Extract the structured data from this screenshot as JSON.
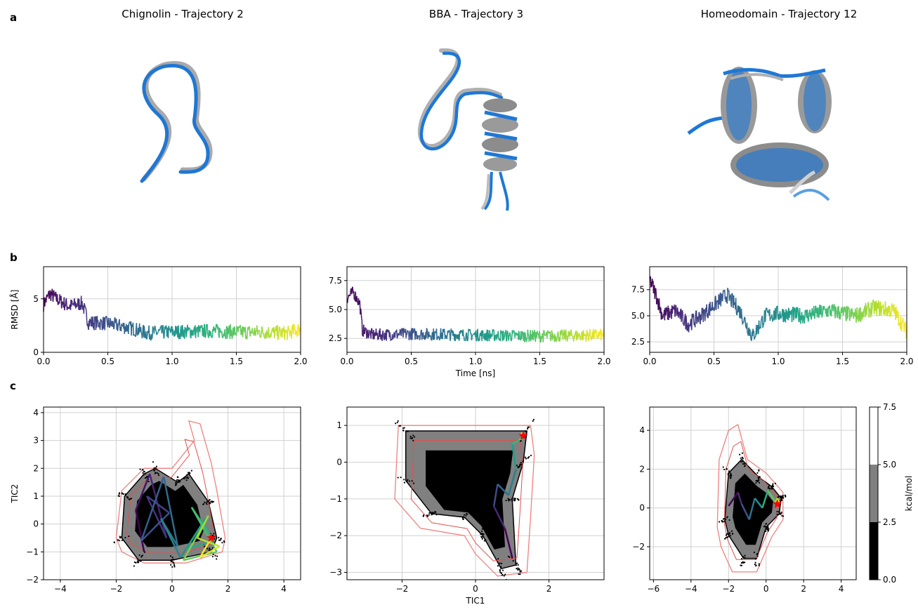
{
  "panel_letters": [
    "a",
    "b",
    "c"
  ],
  "structures": [
    {
      "title": "Chignolin - Trajectory 2"
    },
    {
      "title": "BBA - Trajectory 3"
    },
    {
      "title": "Homeodomain - Trajectory 12"
    }
  ],
  "colors": {
    "reference_structure": "#1f77d4",
    "generated_structure": "#a9a9a9",
    "free_energy_contour": "#f08080",
    "minimum_marker": "#ff0000",
    "grid": "#d9d9d9"
  },
  "chart_data": [
    {
      "type": "line",
      "panel": "b",
      "series_desc": "Chignolin RMSD",
      "xlabel": "",
      "ylabel": "RMSD [Å]",
      "xlim": [
        0,
        2.0
      ],
      "ylim": [
        0,
        8
      ],
      "xticks": [
        "0.0",
        "0.5",
        "1.0",
        "1.5",
        "2.0"
      ],
      "yticks": [
        "0",
        "5"
      ],
      "yticks_values": [
        0,
        5
      ],
      "grid": true,
      "colormap": "viridis",
      "keypoints": [
        [
          0,
          4.5
        ],
        [
          0.05,
          5.5
        ],
        [
          0.1,
          5.0
        ],
        [
          0.2,
          4.3
        ],
        [
          0.3,
          4.6
        ],
        [
          0.35,
          2.8
        ],
        [
          0.5,
          2.7
        ],
        [
          0.7,
          2.2
        ],
        [
          0.8,
          1.8
        ],
        [
          1.0,
          1.9
        ],
        [
          1.3,
          2.0
        ],
        [
          1.5,
          1.9
        ],
        [
          1.7,
          1.9
        ],
        [
          1.9,
          1.8
        ],
        [
          2.0,
          2.2
        ]
      ],
      "noise": 0.7
    },
    {
      "type": "line",
      "panel": "b",
      "series_desc": "BBA RMSD",
      "xlabel": "Time [ns]",
      "ylabel": "",
      "xlim": [
        0,
        2.0
      ],
      "ylim": [
        1.3,
        8.7
      ],
      "xticks": [
        "0.0",
        "0.5",
        "1.0",
        "1.5",
        "2.0"
      ],
      "yticks": [
        "2.5",
        "5.0",
        "7.5"
      ],
      "yticks_values": [
        2.5,
        5.0,
        7.5
      ],
      "grid": true,
      "colormap": "viridis",
      "keypoints": [
        [
          0,
          6.0
        ],
        [
          0.05,
          6.5
        ],
        [
          0.1,
          5.5
        ],
        [
          0.12,
          3.2
        ],
        [
          0.2,
          2.8
        ],
        [
          0.5,
          2.9
        ],
        [
          1.0,
          2.8
        ],
        [
          1.5,
          2.7
        ],
        [
          2.0,
          2.8
        ]
      ],
      "noise": 0.55
    },
    {
      "type": "line",
      "panel": "b",
      "series_desc": "Homeodomain RMSD",
      "xlabel": "",
      "ylabel": "",
      "xlim": [
        0,
        2.0
      ],
      "ylim": [
        1.5,
        9.7
      ],
      "xticks": [
        "0.0",
        "0.5",
        "1.0",
        "1.5",
        "2.0"
      ],
      "yticks": [
        "2.5",
        "5.0",
        "7.5"
      ],
      "yticks_values": [
        2.5,
        5.0,
        7.5
      ],
      "grid": true,
      "colormap": "viridis",
      "keypoints": [
        [
          0,
          8.5
        ],
        [
          0.05,
          7.0
        ],
        [
          0.1,
          5.0
        ],
        [
          0.2,
          5.5
        ],
        [
          0.3,
          4.2
        ],
        [
          0.4,
          5.0
        ],
        [
          0.5,
          6.0
        ],
        [
          0.6,
          7.0
        ],
        [
          0.7,
          5.5
        ],
        [
          0.8,
          3.0
        ],
        [
          0.9,
          5.0
        ],
        [
          1.0,
          5.2
        ],
        [
          1.2,
          5.0
        ],
        [
          1.4,
          5.5
        ],
        [
          1.6,
          5.0
        ],
        [
          1.75,
          5.8
        ],
        [
          1.9,
          5.5
        ],
        [
          2.0,
          3.5
        ]
      ],
      "noise": 0.8
    },
    {
      "type": "heatmap",
      "panel": "c",
      "series_desc": "Chignolin free energy",
      "xlabel": "",
      "ylabel": "TIC2",
      "xlim": [
        -4.6,
        4.6
      ],
      "ylim": [
        -2,
        4.2
      ],
      "xticks": [
        "−4",
        "−2",
        "0",
        "2",
        "4"
      ],
      "xticks_values": [
        -4,
        -2,
        0,
        2,
        4
      ],
      "yticks": [
        "−2",
        "−1",
        "0",
        "1",
        "2",
        "3",
        "4"
      ],
      "yticks_values": [
        -2,
        -1,
        0,
        1,
        2,
        3,
        4
      ],
      "grid": true,
      "reference_outline": [
        [
          -2.0,
          -0.5
        ],
        [
          -1.8,
          1.2
        ],
        [
          -1.0,
          2.0
        ],
        [
          0.0,
          2.0
        ],
        [
          0.8,
          3.0
        ],
        [
          0.6,
          3.7
        ],
        [
          1.0,
          3.6
        ],
        [
          1.4,
          2.2
        ],
        [
          1.6,
          1.2
        ],
        [
          1.9,
          -0.5
        ],
        [
          1.8,
          -1.0
        ],
        [
          0.5,
          -1.4
        ],
        [
          -1.0,
          -1.4
        ],
        [
          -1.8,
          -1.0
        ]
      ],
      "density_outline": [
        [
          -1.8,
          -0.5
        ],
        [
          -1.7,
          1.0
        ],
        [
          -1.0,
          1.8
        ],
        [
          -0.6,
          2.0
        ],
        [
          0.2,
          1.5
        ],
        [
          0.6,
          1.8
        ],
        [
          1.3,
          0.8
        ],
        [
          1.6,
          -0.5
        ],
        [
          1.4,
          -1.0
        ],
        [
          0.0,
          -1.3
        ],
        [
          -1.2,
          -1.3
        ]
      ],
      "trajectory": [
        [
          -1.0,
          -1.0
        ],
        [
          -1.3,
          0.5
        ],
        [
          -0.8,
          1.8
        ],
        [
          -0.2,
          -0.5
        ],
        [
          -0.9,
          1.0
        ],
        [
          -0.1,
          0.4
        ],
        [
          -1.1,
          -0.6
        ],
        [
          -0.3,
          1.7
        ],
        [
          0.2,
          -0.8
        ],
        [
          -0.4,
          0.2
        ],
        [
          0.3,
          -1.2
        ],
        [
          1.2,
          0.2
        ],
        [
          0.5,
          -0.9
        ],
        [
          1.5,
          -0.6
        ],
        [
          0.7,
          0.6
        ],
        [
          1.6,
          -1.0
        ],
        [
          0.4,
          -1.3
        ],
        [
          1.3,
          0.3
        ],
        [
          0.9,
          -0.5
        ],
        [
          1.7,
          -0.8
        ],
        [
          1.0,
          -1.2
        ],
        [
          1.4,
          -0.5
        ]
      ],
      "minimum": [
        1.4,
        -0.5
      ]
    },
    {
      "type": "heatmap",
      "panel": "c",
      "series_desc": "BBA free energy",
      "xlabel": "TIC1",
      "ylabel": "",
      "xlim": [
        -3.5,
        3.5
      ],
      "ylim": [
        -3.2,
        1.5
      ],
      "xticks": [
        "−2",
        "0",
        "2"
      ],
      "xticks_values": [
        -2,
        0,
        2
      ],
      "yticks": [
        "−3",
        "−2",
        "−1",
        "0",
        "1"
      ],
      "yticks_values": [
        -3,
        -2,
        -1,
        0,
        1
      ],
      "grid": true,
      "reference_outline": [
        [
          -2.1,
          1.0
        ],
        [
          1.5,
          1.0
        ],
        [
          1.6,
          0.2
        ],
        [
          1.5,
          -1.5
        ],
        [
          1.4,
          -3.0
        ],
        [
          0.6,
          -3.1
        ],
        [
          0.0,
          -2.5
        ],
        [
          -0.3,
          -2.0
        ],
        [
          -1.5,
          -1.8
        ],
        [
          -2.2,
          -1.0
        ]
      ],
      "density_outline": [
        [
          -1.9,
          0.85
        ],
        [
          1.4,
          0.85
        ],
        [
          1.3,
          0.0
        ],
        [
          1.0,
          -1.0
        ],
        [
          1.1,
          -2.8
        ],
        [
          0.7,
          -2.9
        ],
        [
          0.2,
          -2.0
        ],
        [
          -0.3,
          -1.5
        ],
        [
          -1.2,
          -1.4
        ],
        [
          -1.9,
          -0.5
        ]
      ],
      "trajectory": [
        [
          1.0,
          -2.6
        ],
        [
          0.8,
          -1.8
        ],
        [
          0.5,
          -1.2
        ],
        [
          0.6,
          -0.6
        ],
        [
          0.9,
          -0.9
        ],
        [
          1.1,
          -0.2
        ],
        [
          1.0,
          0.5
        ],
        [
          1.2,
          0.6
        ],
        [
          1.3,
          0.75
        ],
        [
          1.25,
          0.8
        ],
        [
          1.3,
          0.7
        ]
      ],
      "minimum": [
        1.3,
        0.72
      ]
    },
    {
      "type": "heatmap",
      "panel": "c",
      "series_desc": "Homeodomain free energy",
      "xlabel": "",
      "ylabel": "",
      "xlim": [
        -6.2,
        4.8
      ],
      "ylim": [
        -3.7,
        5.2
      ],
      "xticks": [
        "−6",
        "−4",
        "−2",
        "0",
        "2",
        "4"
      ],
      "xticks_values": [
        -6,
        -4,
        -2,
        0,
        2,
        4
      ],
      "yticks": [
        "−2",
        "0",
        "2",
        "4"
      ],
      "yticks_values": [
        -2,
        0,
        2,
        4
      ],
      "grid": true,
      "reference_outline": [
        [
          -2.6,
          -1.0
        ],
        [
          -2.5,
          2.5
        ],
        [
          -2.0,
          4.0
        ],
        [
          -1.5,
          4.3
        ],
        [
          -1.0,
          2.5
        ],
        [
          0.0,
          1.8
        ],
        [
          0.9,
          0.8
        ],
        [
          0.9,
          -0.6
        ],
        [
          0.3,
          -1.5
        ],
        [
          -0.5,
          -3.3
        ],
        [
          -1.8,
          -3.3
        ],
        [
          -2.4,
          -2.0
        ]
      ],
      "density_outline": [
        [
          -2.2,
          -0.6
        ],
        [
          -2.0,
          1.8
        ],
        [
          -1.3,
          2.5
        ],
        [
          -0.4,
          1.6
        ],
        [
          0.3,
          1.1
        ],
        [
          0.8,
          0.5
        ],
        [
          0.7,
          -0.3
        ],
        [
          0.0,
          -1.0
        ],
        [
          -0.5,
          -2.6
        ],
        [
          -1.2,
          -2.6
        ],
        [
          -2.0,
          -1.4
        ]
      ],
      "trajectory": [
        [
          -2.0,
          0.1
        ],
        [
          -1.5,
          0.8
        ],
        [
          -1.3,
          0.2
        ],
        [
          -0.9,
          -0.6
        ],
        [
          -0.6,
          0.5
        ],
        [
          -0.2,
          0.0
        ],
        [
          0.1,
          0.9
        ],
        [
          0.5,
          0.3
        ],
        [
          0.6,
          0.5
        ],
        [
          0.7,
          0.2
        ]
      ],
      "minimum": [
        0.6,
        0.2
      ]
    }
  ],
  "colorbar": {
    "label": "kcal/mol",
    "ticks": [
      "0.0",
      "2.5",
      "5.0",
      "7.5"
    ],
    "levels": [
      0,
      2.5,
      5.0,
      7.5
    ],
    "colors": [
      "#000000",
      "#808080",
      "#ffffff"
    ]
  }
}
